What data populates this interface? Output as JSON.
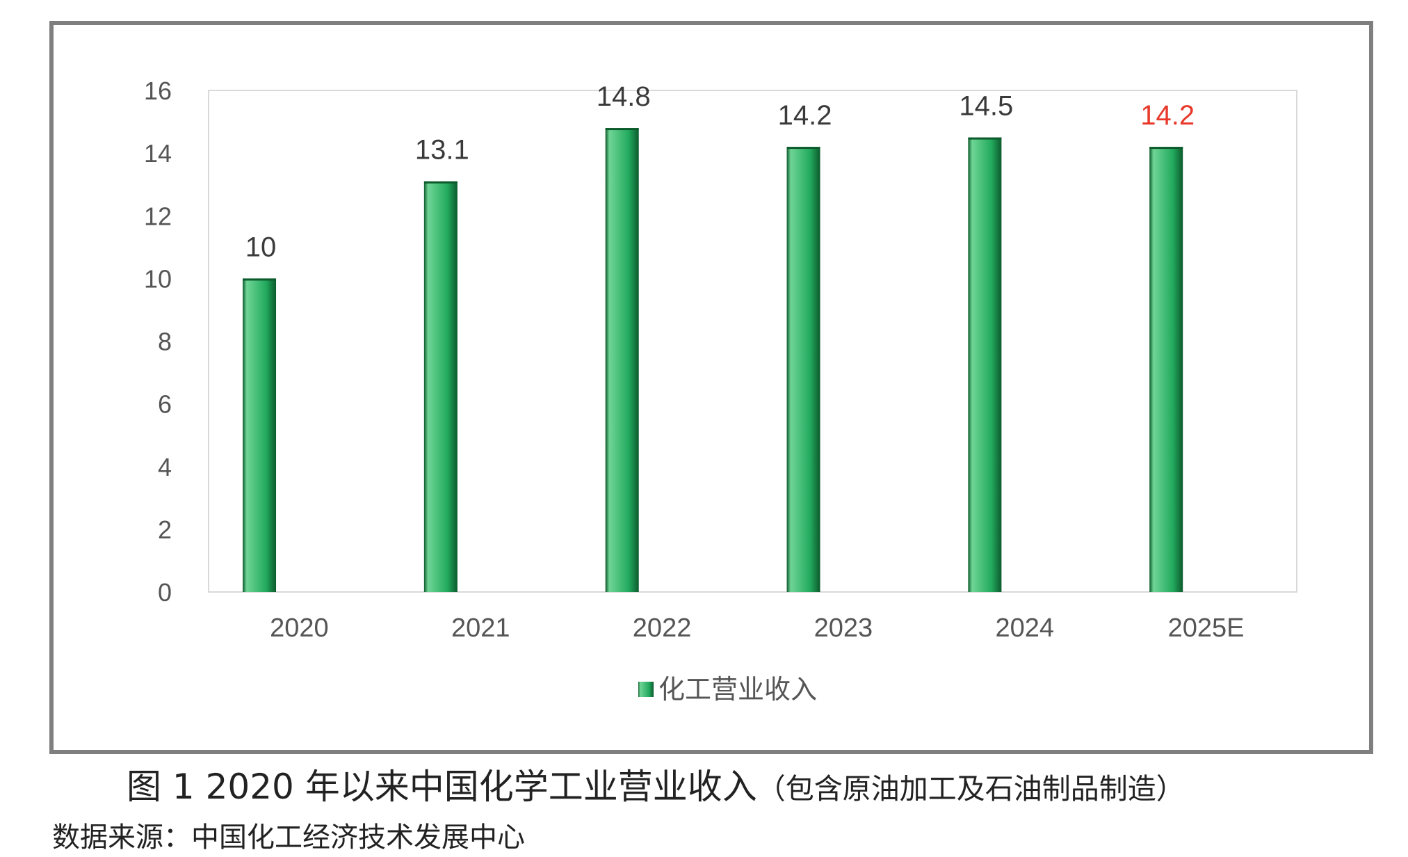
{
  "chart_data": {
    "type": "bar",
    "categories": [
      "2020",
      "2021",
      "2022",
      "2023",
      "2024",
      "2025E"
    ],
    "series": [
      {
        "name": "化工营业收入",
        "values": [
          10,
          13.1,
          14.8,
          14.2,
          14.5,
          14.2
        ],
        "data_labels": [
          "10",
          "13.1",
          "14.8",
          "14.2",
          "14.5",
          "14.2"
        ]
      }
    ],
    "ylim": [
      0,
      16
    ],
    "yticks": [
      0,
      2,
      4,
      6,
      8,
      10,
      12,
      14,
      16
    ],
    "grid": false,
    "legend_position": "bottom-center",
    "colors": {
      "bar": "#22aa5e",
      "bar_dark": "#0d5a2c",
      "bar_highlight": "#6fd596",
      "label": "#3a3a3a",
      "estimate_label": "#e8392a",
      "axis_text": "#555555",
      "plot_border": "#d9d9d9"
    }
  },
  "figure": {
    "caption_main": "图 1  2020 年以来中国化学工业营业收入",
    "caption_paren": "（包含原油加工及石油制品制造）",
    "source": "数据来源：中国化工经济技术发展中心"
  }
}
